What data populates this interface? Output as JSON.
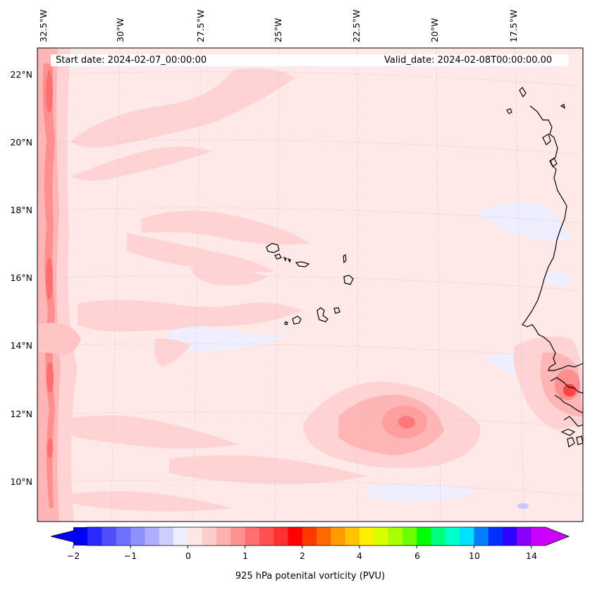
{
  "map": {
    "start_date": "Start date: 2024-02-07_00:00:00",
    "valid_date": "Valid_date: 2024-02-08T00:00:00.00",
    "lon_labels": [
      "32.5°W",
      "30°W",
      "27.5°W",
      "25°W",
      "22.5°W",
      "20°W",
      "17.5°W"
    ],
    "lat_labels": [
      "22°N",
      "20°N",
      "18°N",
      "16°N",
      "14°N",
      "12°N",
      "10°N"
    ],
    "colors": {
      "background_fill": "#ffe8e8",
      "light_pink": "#ffd3d3",
      "medium_pink": "#ffb5b5",
      "strong_pink": "#ff8e8e",
      "red": "#ff5555",
      "pale_blue": "#eeeeff",
      "coast": "#000000",
      "grid": "#c8c8c8"
    }
  },
  "colorbar": {
    "label": "925 hPa potenital vorticity (PVU)",
    "ticks": [
      "−2",
      "−1",
      "0",
      "1",
      "2",
      "4",
      "6",
      "10",
      "14"
    ],
    "colors": [
      "#0000ff",
      "#2b2bff",
      "#4f4fff",
      "#7070ff",
      "#8f8fff",
      "#aeaeff",
      "#cfcfff",
      "#eeeeff",
      "#ffe6e6",
      "#ffcccc",
      "#ffb0b0",
      "#ff9090",
      "#ff7070",
      "#ff5050",
      "#ff3030",
      "#ff0000",
      "#ff3800",
      "#ff6a00",
      "#ff9a00",
      "#ffc400",
      "#fff000",
      "#d8ff00",
      "#a8ff00",
      "#6cff00",
      "#00ff00",
      "#00ff7a",
      "#00ffcc",
      "#00e0ff",
      "#0080ff",
      "#0030ff",
      "#3000ff",
      "#8a00ff",
      "#cc00ff"
    ],
    "under_color": "#0000ff",
    "over_color": "#cc00ff"
  }
}
